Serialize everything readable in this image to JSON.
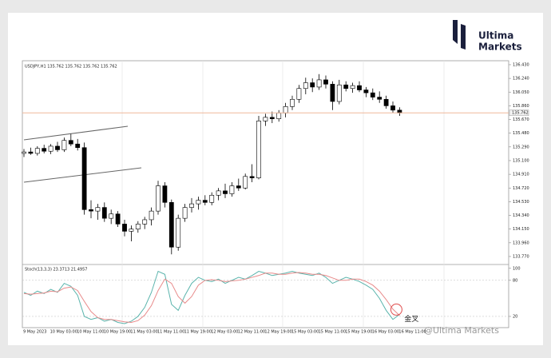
{
  "brand": {
    "line1": "Ultima",
    "line2": "Markets"
  },
  "watermark": "@Ultima Markets",
  "chart_data": [
    {
      "type": "candlestick",
      "title": "USDJPY,H1 135.762 135.762 135.762 135.762",
      "categories": [
        "9 May 2023",
        null,
        null,
        null,
        "10 May 03:00",
        null,
        null,
        null,
        "10 May 11:00",
        null,
        null,
        null,
        "10 May 19:00",
        null,
        null,
        null,
        "11 May 03:00",
        null,
        null,
        null,
        "11 May 11:00",
        null,
        null,
        null,
        "11 May 19:00",
        null,
        null,
        null,
        "12 May 03:00",
        null,
        null,
        null,
        "12 May 11:00",
        null,
        null,
        null,
        "12 May 19:00",
        null,
        null,
        null,
        "15 May 03:00",
        null,
        null,
        null,
        "15 May 11:00",
        null,
        null,
        null,
        "15 May 19:00",
        null,
        null,
        null,
        "16 May 03:00",
        null,
        null,
        null,
        "16 May 11:00"
      ],
      "open": [
        135.2,
        135.22,
        135.2,
        135.27,
        135.23,
        135.3,
        135.25,
        135.38,
        135.33,
        135.28,
        134.42,
        134.4,
        134.45,
        134.3,
        134.36,
        134.22,
        134.12,
        134.15,
        134.22,
        134.28,
        134.4,
        134.75,
        134.52,
        133.9,
        134.3,
        134.45,
        134.5,
        134.55,
        134.52,
        134.62,
        134.68,
        134.64,
        134.75,
        134.72,
        134.88,
        134.86,
        135.65,
        135.7,
        135.68,
        135.76,
        135.85,
        135.95,
        136.1,
        136.18,
        136.12,
        136.22,
        136.16,
        135.92,
        136.15,
        136.1,
        136.14,
        136.08,
        136.04,
        135.98,
        135.95,
        135.86,
        135.8
      ],
      "high": [
        135.26,
        135.28,
        135.3,
        135.32,
        135.33,
        135.36,
        135.42,
        135.47,
        135.4,
        135.35,
        134.55,
        134.5,
        134.52,
        134.42,
        134.4,
        134.28,
        134.2,
        134.26,
        134.32,
        134.45,
        134.82,
        134.8,
        134.56,
        134.35,
        134.5,
        134.58,
        134.6,
        134.62,
        134.66,
        134.72,
        134.78,
        134.8,
        134.85,
        134.92,
        135.05,
        135.72,
        135.75,
        135.78,
        135.8,
        135.9,
        136.0,
        136.15,
        136.25,
        136.24,
        136.3,
        136.28,
        136.2,
        136.22,
        136.2,
        136.18,
        136.2,
        136.12,
        136.1,
        136.06,
        136.0,
        135.92,
        135.84
      ],
      "low": [
        135.15,
        135.18,
        135.17,
        135.2,
        135.19,
        135.22,
        135.22,
        135.3,
        135.24,
        134.35,
        134.3,
        134.28,
        134.25,
        134.22,
        134.18,
        134.05,
        133.98,
        134.1,
        134.15,
        134.2,
        134.35,
        134.45,
        133.8,
        133.85,
        134.25,
        134.38,
        134.42,
        134.48,
        134.48,
        134.55,
        134.58,
        134.6,
        134.68,
        134.7,
        134.8,
        134.84,
        135.58,
        135.62,
        135.64,
        135.7,
        135.8,
        135.9,
        136.02,
        136.05,
        136.08,
        136.1,
        135.8,
        135.88,
        136.06,
        136.04,
        136.05,
        135.98,
        135.94,
        135.9,
        135.82,
        135.76,
        135.72
      ],
      "close": [
        135.22,
        135.2,
        135.27,
        135.23,
        135.3,
        135.25,
        135.38,
        135.33,
        135.28,
        134.42,
        134.4,
        134.45,
        134.3,
        134.36,
        134.22,
        134.12,
        134.15,
        134.22,
        134.28,
        134.4,
        134.75,
        134.52,
        133.9,
        134.3,
        134.45,
        134.5,
        134.55,
        134.52,
        134.62,
        134.68,
        134.64,
        134.75,
        134.72,
        134.88,
        134.86,
        135.65,
        135.7,
        135.68,
        135.76,
        135.85,
        135.95,
        136.1,
        136.18,
        136.12,
        136.22,
        136.16,
        135.92,
        136.15,
        136.1,
        136.14,
        136.08,
        136.04,
        135.98,
        135.95,
        135.86,
        135.8,
        135.76
      ],
      "up_color": "#ffffff",
      "down_color": "#000000",
      "current_price": 135.762,
      "current_price_color": "#f0b89a",
      "ylim": [
        133.67,
        136.485
      ],
      "yticks": [
        {
          "value": 136.43,
          "label": "136.430"
        },
        {
          "value": 136.24,
          "label": "136.240"
        },
        {
          "value": 136.05,
          "label": "136.050"
        },
        {
          "value": 135.86,
          "label": "135.860"
        },
        {
          "value": 135.67,
          "label": "135.670"
        },
        {
          "value": 135.48,
          "label": "135.480"
        },
        {
          "value": 135.29,
          "label": "135.290"
        },
        {
          "value": 135.1,
          "label": "135.100"
        },
        {
          "value": 134.91,
          "label": "134.910"
        },
        {
          "value": 134.72,
          "label": "134.720"
        },
        {
          "value": 134.53,
          "label": "134.530"
        },
        {
          "value": 134.34,
          "label": "134.340"
        },
        {
          "value": 134.15,
          "label": "134.150"
        },
        {
          "value": 133.96,
          "label": "133.960"
        },
        {
          "value": 133.77,
          "label": "133.770"
        }
      ]
    },
    {
      "type": "line",
      "title": "Stoch(13,3,3) 23.3713 21.4957",
      "series": [
        {
          "color": "#5ab4ac",
          "values": [
            60,
            55,
            62,
            58,
            65,
            60,
            75,
            70,
            55,
            20,
            15,
            18,
            12,
            15,
            10,
            8,
            12,
            20,
            35,
            60,
            95,
            90,
            40,
            30,
            55,
            75,
            85,
            80,
            78,
            82,
            75,
            80,
            85,
            82,
            88,
            95,
            92,
            88,
            90,
            92,
            95,
            92,
            90,
            88,
            92,
            85,
            75,
            80,
            85,
            82,
            78,
            72,
            65,
            50,
            30,
            15,
            23.3713
          ]
        },
        {
          "color": "#e88a8a",
          "values": [
            58,
            57,
            58,
            59,
            62,
            61,
            67,
            69,
            63,
            45,
            28,
            18,
            15,
            15,
            13,
            11,
            10,
            13,
            22,
            38,
            63,
            82,
            75,
            53,
            42,
            53,
            72,
            80,
            81,
            80,
            78,
            79,
            80,
            82,
            85,
            88,
            92,
            92,
            90,
            90,
            92,
            93,
            92,
            90,
            90,
            88,
            84,
            80,
            80,
            82,
            82,
            78,
            72,
            62,
            48,
            32,
            21.4957
          ]
        }
      ],
      "levels": [
        80,
        20
      ],
      "ylim": [
        0,
        105
      ],
      "yticks": [
        100,
        80,
        20
      ],
      "annotation": "金叉",
      "annotation_color": "#e05050"
    }
  ]
}
